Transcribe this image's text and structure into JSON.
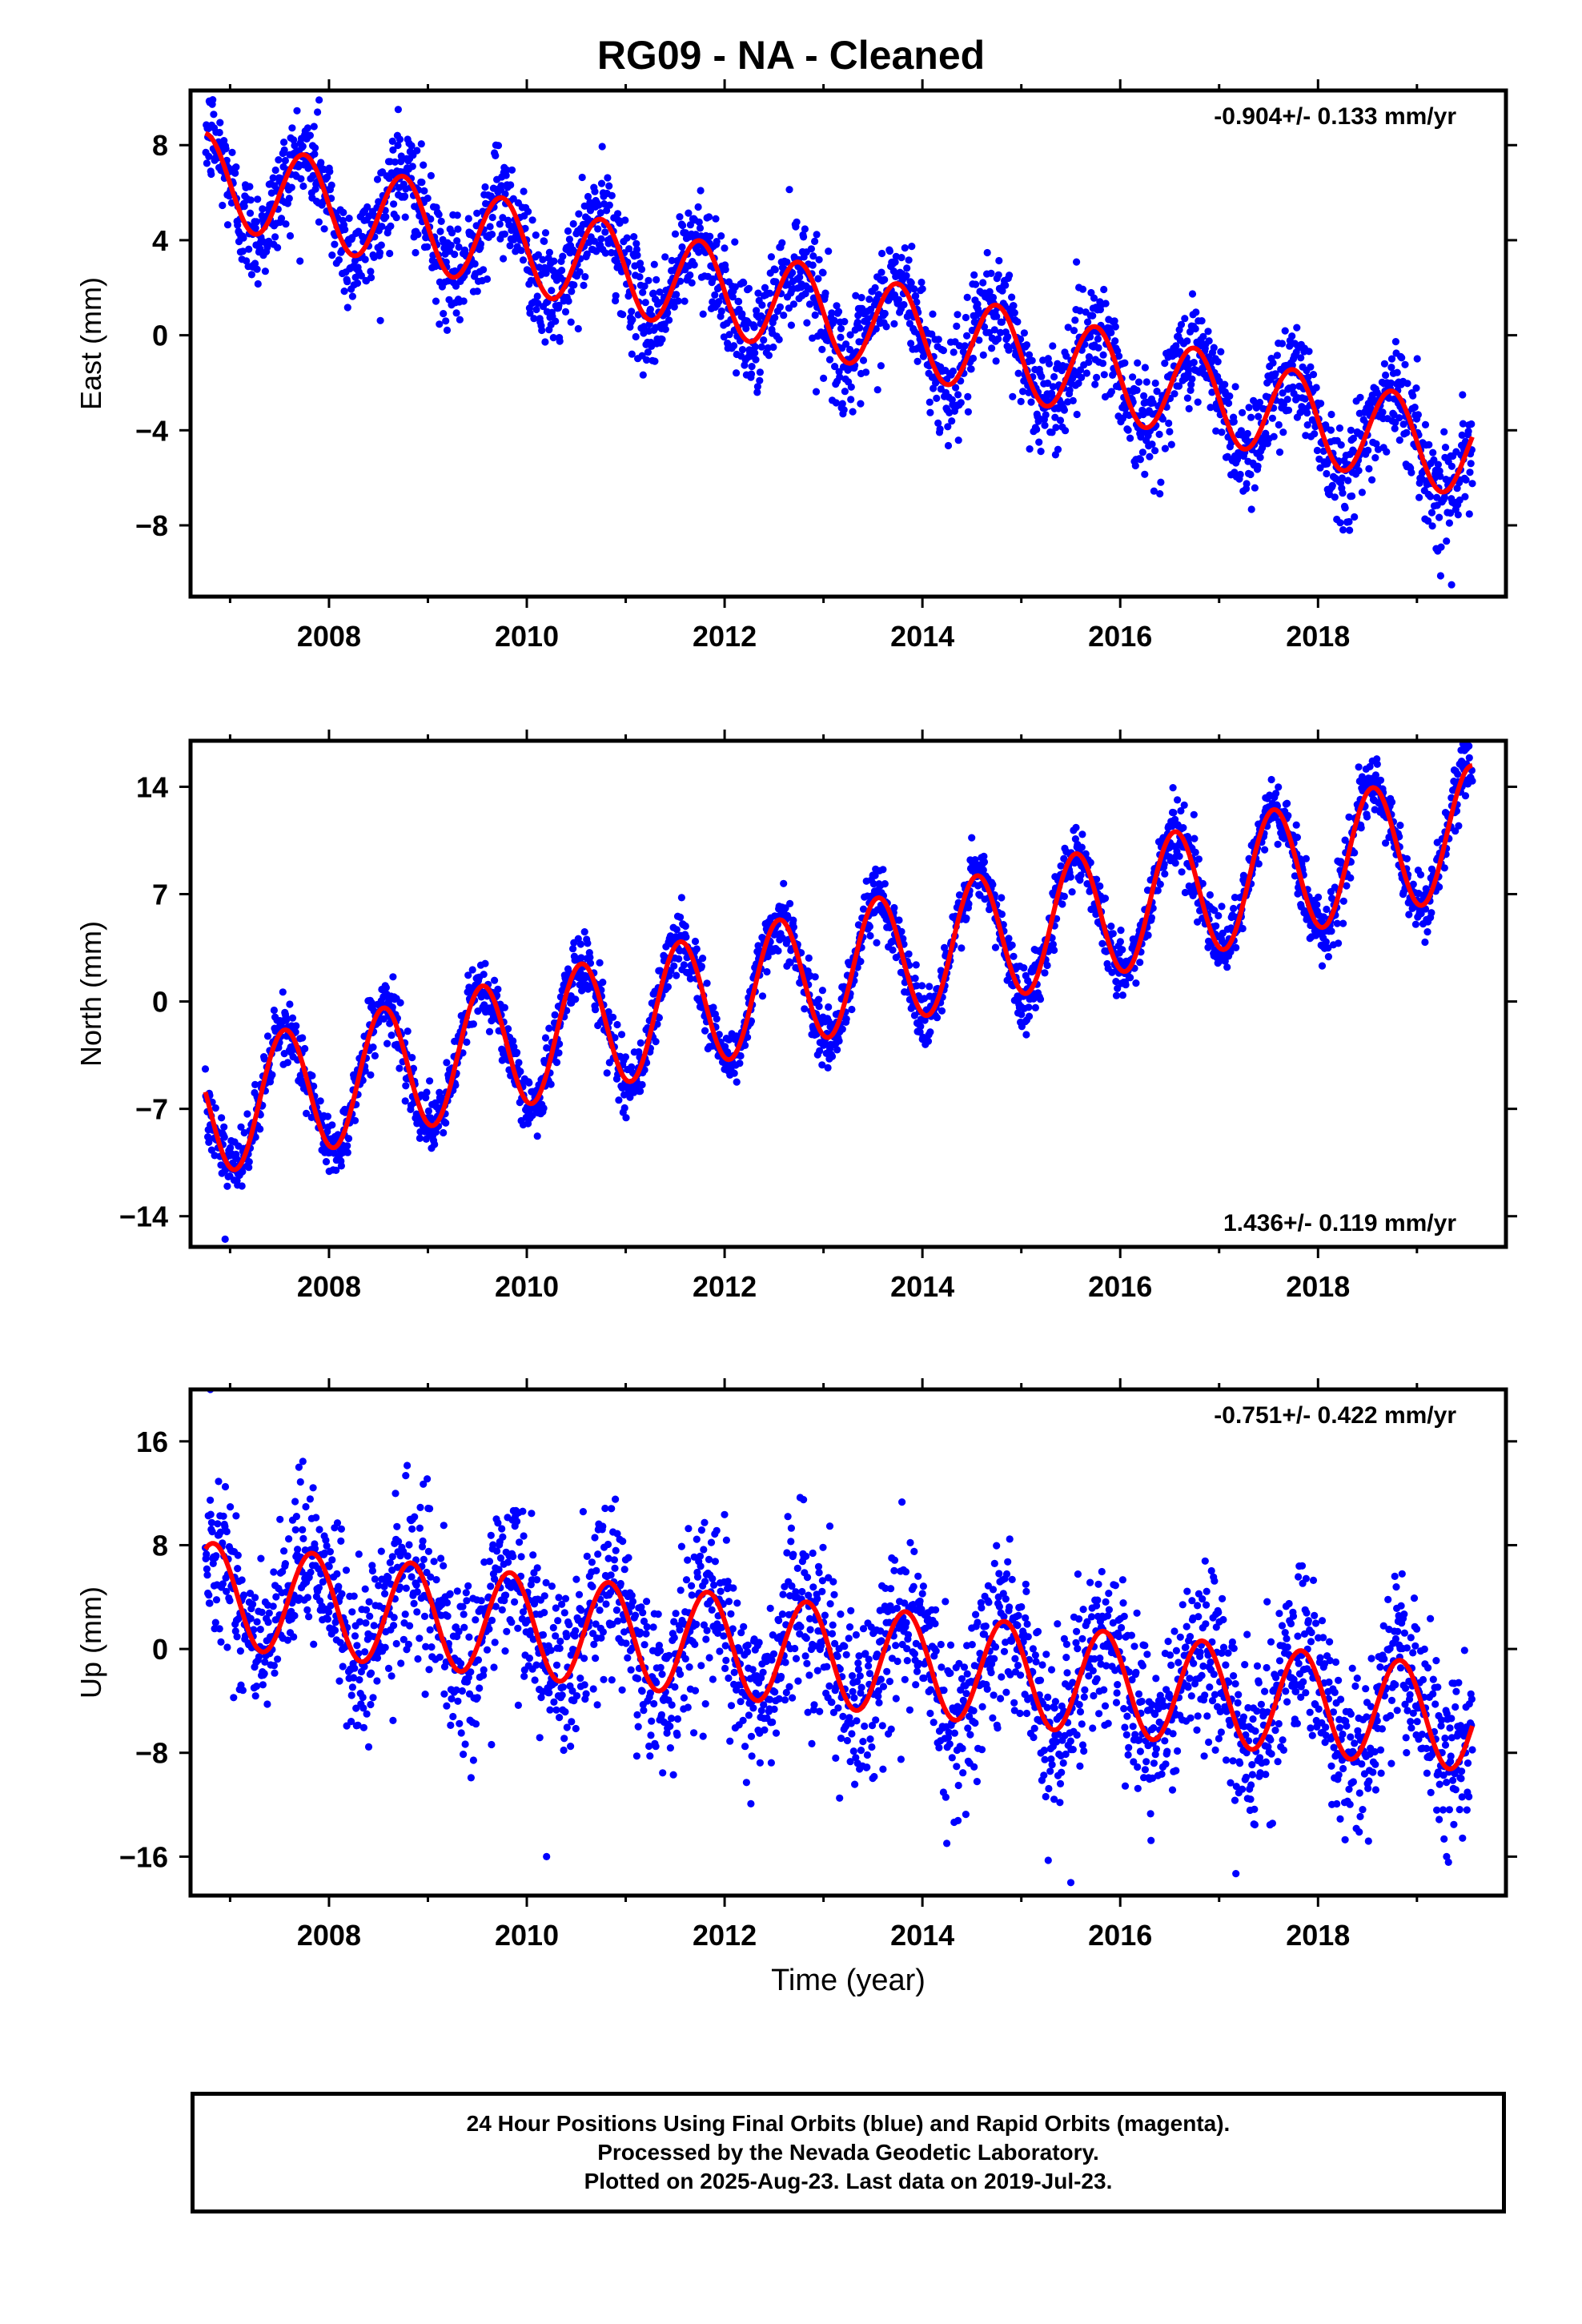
{
  "title": "RG09  - NA - Cleaned",
  "x_axis_label": "Time (year)",
  "footer": {
    "line1": "24 Hour Positions Using Final Orbits (blue) and Rapid Orbits (magenta).",
    "line2": "Processed by the Nevada Geodetic Laboratory.",
    "line3": "Plotted on 2025-Aug-23. Last data on 2019-Jul-23."
  },
  "colors": {
    "points": "#0000ff",
    "model": "#ff0000",
    "axes": "#000000"
  },
  "chart_data": [
    {
      "type": "scatter",
      "ylabel": "East (mm)",
      "rate_text": "-0.904+/- 0.133 mm/yr",
      "rate_position": "top-right",
      "xlim": [
        2006.6,
        2019.9
      ],
      "ylim": [
        -11,
        10.3
      ],
      "xticks": [
        2008,
        2010,
        2012,
        2014,
        2016,
        2018
      ],
      "yticks": [
        8,
        4,
        0,
        -4,
        -8
      ],
      "ytick_labels": [
        "8",
        "4",
        "0",
        "−4",
        "−8"
      ],
      "grid": false,
      "x_start": 2006.75,
      "x_end": 2019.56,
      "model": {
        "intercept": 6.6,
        "trend": -0.904,
        "amplitude": 1.9,
        "peak_phase": 0.75
      },
      "scatter_sigma": 1.1,
      "outliers": [
        [
          2006.8,
          9.8
        ],
        [
          2007.9,
          9.9
        ],
        [
          2008.7,
          9.5
        ],
        [
          2019.35,
          -10.5
        ]
      ]
    },
    {
      "type": "scatter",
      "ylabel": "North (mm)",
      "rate_text": "1.436+/- 0.119 mm/yr",
      "rate_position": "bottom-right",
      "xlim": [
        2006.6,
        2019.9
      ],
      "ylim": [
        -16,
        17
      ],
      "xticks": [
        2008,
        2010,
        2012,
        2014,
        2016,
        2018
      ],
      "yticks": [
        14,
        7,
        0,
        -7,
        -14
      ],
      "ytick_labels": [
        "14",
        "7",
        "0",
        "−7",
        "−14"
      ],
      "grid": false,
      "x_start": 2006.75,
      "x_end": 2019.56,
      "model": {
        "intercept": -7.2,
        "trend": 1.436,
        "amplitude": 4.2,
        "peak_phase": 0.55
      },
      "scatter_sigma": 1.0,
      "outliers": [
        [
          2006.95,
          -15.5
        ],
        [
          2019.5,
          16.5
        ]
      ]
    },
    {
      "type": "scatter",
      "ylabel": "Up (mm)",
      "rate_text": "-0.751+/- 0.422 mm/yr",
      "rate_position": "top-right",
      "xlim": [
        2006.6,
        2019.9
      ],
      "ylim": [
        -19,
        20
      ],
      "xticks": [
        2008,
        2010,
        2012,
        2014,
        2016,
        2018
      ],
      "yticks": [
        16,
        8,
        0,
        -8,
        -16
      ],
      "ytick_labels": [
        "16",
        "8",
        "0",
        "−8",
        "−16"
      ],
      "grid": false,
      "x_start": 2006.75,
      "x_end": 2019.56,
      "model": {
        "intercept": 4.2,
        "trend": -0.751,
        "amplitude": 4.0,
        "peak_phase": 0.83
      },
      "scatter_sigma": 3.2,
      "outliers": [
        [
          2006.8,
          20.0
        ],
        [
          2015.5,
          -18.0
        ],
        [
          2010.2,
          -16.0
        ],
        [
          2019.3,
          -16.0
        ]
      ]
    }
  ]
}
